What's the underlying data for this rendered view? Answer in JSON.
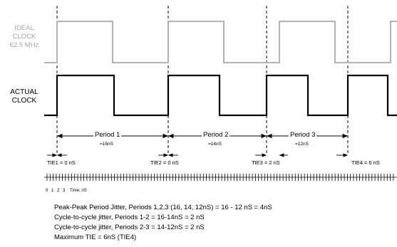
{
  "signals": {
    "ideal_label": [
      "IDEAL",
      "CLOCK",
      "62.5 MHz"
    ],
    "actual_label": [
      "ACTUAL",
      "CLOCK"
    ]
  },
  "periods": [
    {
      "label": "Period 1",
      "value": "=16nS"
    },
    {
      "label": "Period 2",
      "value": "=14nS"
    },
    {
      "label": "Period 3",
      "value": "=12nS"
    }
  ],
  "tie_labels": [
    "TIE1 = 0 nS",
    "TIE2 = 0 nS",
    "TIE3 = 2 nS",
    "TIE4 = 6 nS"
  ],
  "time_axis": {
    "tick_labels": [
      "0",
      "1",
      "2",
      "3"
    ],
    "unit_label": "Time, nS"
  },
  "notes": [
    "Peak-Peak Period Jitter, Periods 1,2,3 (16, 14, 12nS) = 16 - 12 nS = 4nS",
    "Cycle-to-cycle jitter, Periods 1-2 = 16-14nS = 2 nS",
    "Cycle-to-cycle jitter, Periods 2-3 = 14-12nS = 2 nS",
    "Maximum TIE = 6nS (TIE4)"
  ],
  "colors": {
    "ideal_waveform": "#b3b3b3",
    "actual_waveform": "#000000",
    "ideal_label": "#a6a6a6"
  }
}
